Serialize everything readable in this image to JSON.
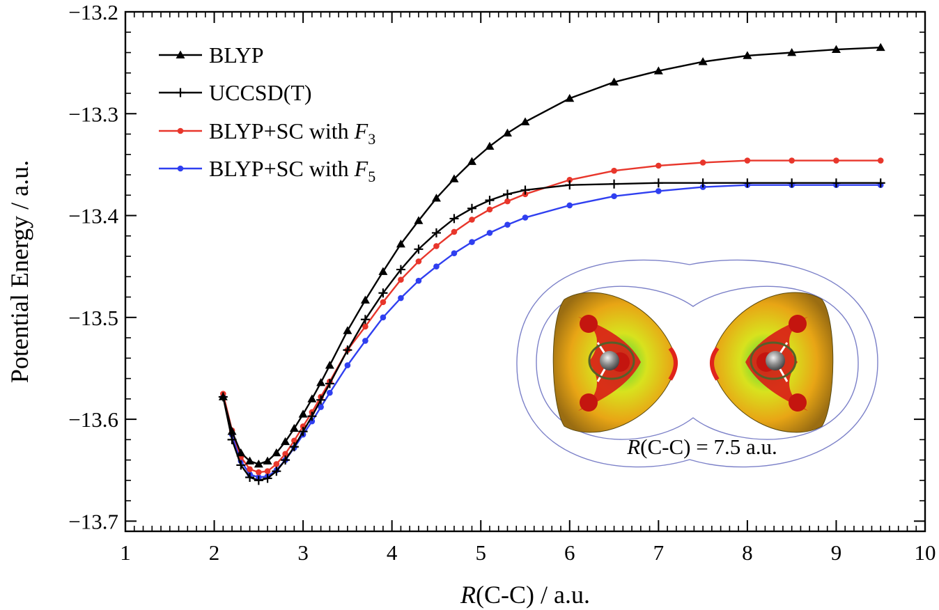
{
  "chart_data": {
    "type": "line",
    "xlabel_var": "R",
    "xlabel_rest": "(C-C) / a.u.",
    "ylabel": "Potential Energy / a.u.",
    "xlim": [
      1,
      10
    ],
    "ylim": [
      -13.71,
      -13.2
    ],
    "xticks": [
      1,
      2,
      3,
      4,
      5,
      6,
      7,
      8,
      9,
      10
    ],
    "xtick_labels": [
      "1",
      "2",
      "3",
      "4",
      "5",
      "6",
      "7",
      "8",
      "9",
      "10"
    ],
    "yticks": [
      -13.2,
      -13.3,
      -13.4,
      -13.5,
      -13.6,
      -13.7
    ],
    "ytick_labels": [
      "−13.2",
      "−13.3",
      "−13.4",
      "−13.5",
      "−13.6",
      "−13.7"
    ],
    "grid": false,
    "legend_position": "top-left",
    "inset_label_var": "R",
    "inset_label_rest": "(C-C) = 7.5 a.u.",
    "series": [
      {
        "name": "BLYP",
        "legend_text": "BLYP",
        "legend_sub": "",
        "color": "#000000",
        "marker": "triangle",
        "x": [
          2.1,
          2.2,
          2.3,
          2.4,
          2.5,
          2.6,
          2.7,
          2.8,
          2.9,
          3.0,
          3.1,
          3.2,
          3.3,
          3.5,
          3.7,
          3.9,
          4.1,
          4.3,
          4.5,
          4.7,
          4.9,
          5.1,
          5.3,
          5.5,
          6.0,
          6.5,
          7.0,
          7.5,
          8.0,
          8.5,
          9.0,
          9.5
        ],
        "y": [
          -13.578,
          -13.612,
          -13.633,
          -13.641,
          -13.644,
          -13.641,
          -13.633,
          -13.622,
          -13.609,
          -13.595,
          -13.58,
          -13.564,
          -13.547,
          -13.513,
          -13.483,
          -13.455,
          -13.428,
          -13.405,
          -13.383,
          -13.364,
          -13.347,
          -13.332,
          -13.319,
          -13.308,
          -13.285,
          -13.269,
          -13.258,
          -13.249,
          -13.243,
          -13.24,
          -13.237,
          -13.235
        ]
      },
      {
        "name": "UCCSD(T)",
        "legend_text": "UCCSD(T)",
        "legend_sub": "",
        "color": "#000000",
        "marker": "plus",
        "x": [
          2.1,
          2.2,
          2.3,
          2.4,
          2.5,
          2.6,
          2.7,
          2.8,
          2.9,
          3.0,
          3.1,
          3.2,
          3.3,
          3.5,
          3.7,
          3.9,
          4.1,
          4.3,
          4.5,
          4.7,
          4.9,
          5.1,
          5.3,
          5.5,
          6.0,
          6.5,
          7.0,
          7.5,
          8.0,
          8.5,
          9.0,
          9.5
        ],
        "y": [
          -13.578,
          -13.62,
          -13.645,
          -13.657,
          -13.66,
          -13.658,
          -13.651,
          -13.64,
          -13.627,
          -13.612,
          -13.597,
          -13.581,
          -13.565,
          -13.532,
          -13.502,
          -13.476,
          -13.453,
          -13.433,
          -13.417,
          -13.403,
          -13.393,
          -13.385,
          -13.379,
          -13.375,
          -13.37,
          -13.369,
          -13.368,
          -13.368,
          -13.368,
          -13.368,
          -13.368,
          -13.368
        ]
      },
      {
        "name": "BLYP+SC with F3",
        "legend_text": "BLYP+SC with F",
        "legend_sub": "3",
        "color": "#e8362b",
        "marker": "circle",
        "x": [
          2.1,
          2.2,
          2.3,
          2.4,
          2.5,
          2.6,
          2.7,
          2.8,
          2.9,
          3.0,
          3.1,
          3.2,
          3.3,
          3.5,
          3.7,
          3.9,
          4.1,
          4.3,
          4.5,
          4.7,
          4.9,
          5.1,
          5.3,
          5.5,
          6.0,
          6.5,
          7.0,
          7.5,
          8.0,
          8.5,
          9.0,
          9.5
        ],
        "y": [
          -13.575,
          -13.611,
          -13.637,
          -13.649,
          -13.652,
          -13.651,
          -13.644,
          -13.634,
          -13.621,
          -13.607,
          -13.593,
          -13.578,
          -13.563,
          -13.532,
          -13.509,
          -13.485,
          -13.463,
          -13.445,
          -13.43,
          -13.416,
          -13.404,
          -13.394,
          -13.386,
          -13.379,
          -13.365,
          -13.356,
          -13.351,
          -13.348,
          -13.346,
          -13.346,
          -13.346,
          -13.346
        ]
      },
      {
        "name": "BLYP+SC with F5",
        "legend_text": "BLYP+SC with F",
        "legend_sub": "5",
        "color": "#2f3ff0",
        "marker": "circle",
        "x": [
          2.1,
          2.2,
          2.3,
          2.4,
          2.5,
          2.6,
          2.7,
          2.8,
          2.9,
          3.0,
          3.1,
          3.2,
          3.3,
          3.5,
          3.7,
          3.9,
          4.1,
          4.3,
          4.5,
          4.7,
          4.9,
          5.1,
          5.3,
          5.5,
          6.0,
          6.5,
          7.0,
          7.5,
          8.0,
          8.5,
          9.0,
          9.5
        ],
        "y": [
          -13.578,
          -13.615,
          -13.641,
          -13.654,
          -13.657,
          -13.656,
          -13.65,
          -13.64,
          -13.628,
          -13.615,
          -13.602,
          -13.588,
          -13.574,
          -13.547,
          -13.523,
          -13.5,
          -13.481,
          -13.464,
          -13.45,
          -13.437,
          -13.426,
          -13.417,
          -13.409,
          -13.402,
          -13.39,
          -13.381,
          -13.376,
          -13.372,
          -13.37,
          -13.37,
          -13.37,
          -13.37
        ]
      }
    ]
  }
}
